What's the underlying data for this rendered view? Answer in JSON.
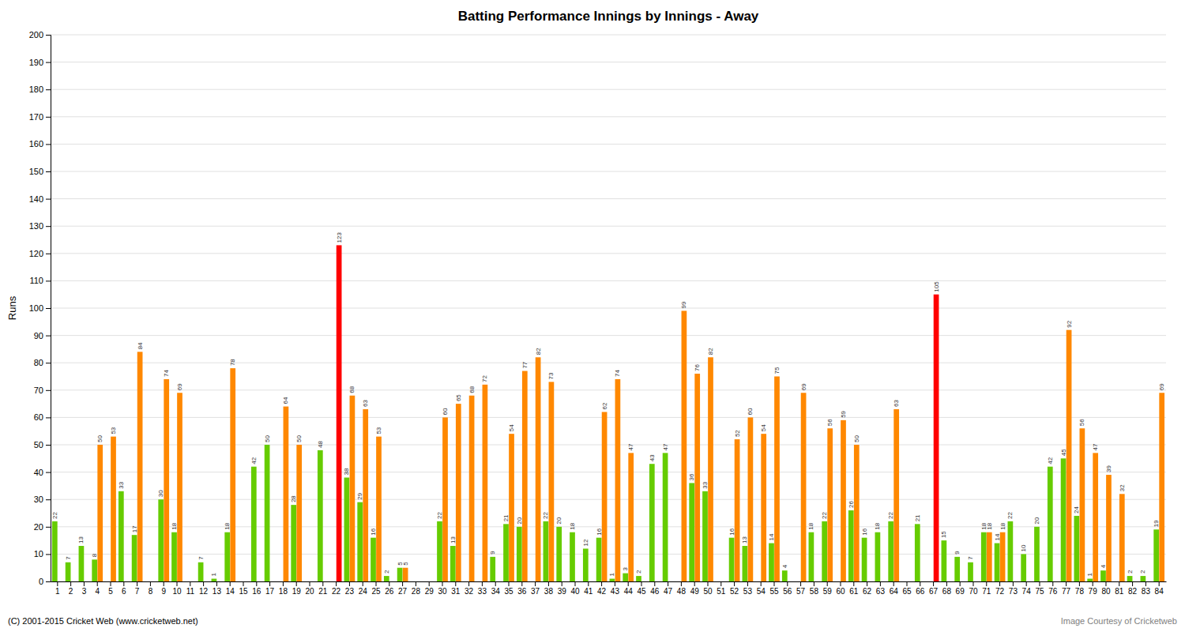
{
  "chart_data": {
    "type": "bar",
    "title": "Batting Performance Innings by Innings - Away",
    "y_label": "Runs",
    "categories": [
      1,
      2,
      3,
      4,
      5,
      6,
      7,
      8,
      9,
      10,
      11,
      12,
      13,
      14,
      15,
      16,
      17,
      18,
      19,
      20,
      21,
      22,
      23,
      24,
      25,
      26,
      27,
      28,
      29,
      30,
      31,
      32,
      33,
      34,
      35,
      36,
      37,
      38,
      39,
      40,
      41,
      42,
      43,
      44,
      45,
      46,
      47,
      48,
      49,
      50,
      51,
      52,
      53,
      54,
      55,
      56,
      57,
      58,
      59,
      60,
      61,
      62,
      63,
      64,
      65,
      66,
      67,
      68,
      69,
      70,
      71,
      72,
      73,
      74,
      75,
      76,
      77,
      78,
      79,
      80,
      81,
      82,
      83,
      84
    ],
    "series": [
      {
        "color": "#66cc00",
        "values": [
          22,
          7,
          13,
          8,
          0,
          33,
          17,
          0,
          30,
          18,
          0,
          7,
          1,
          18,
          0,
          42,
          50,
          0,
          28,
          0,
          48,
          0,
          38,
          29,
          16,
          2,
          5,
          0,
          0,
          22,
          13,
          0,
          0,
          9,
          21,
          20,
          0,
          22,
          20,
          18,
          12,
          16,
          1,
          3,
          2,
          43,
          47,
          0,
          36,
          33,
          0,
          16,
          13,
          0,
          14,
          4,
          0,
          18,
          22,
          0,
          26,
          16,
          18,
          22,
          0,
          21,
          0,
          15,
          9,
          7,
          18,
          14,
          22,
          10,
          20,
          42,
          45,
          24,
          1,
          4,
          0,
          2,
          2,
          19
        ],
        "value_labels": [
          "22",
          "7",
          "13",
          "8",
          null,
          "33",
          "17",
          null,
          "30",
          "18",
          null,
          "7",
          "1",
          "18",
          null,
          "42",
          "50",
          null,
          "28",
          null,
          "48",
          null,
          "38",
          "29",
          "16",
          "2",
          "5",
          null,
          null,
          "22",
          "13",
          null,
          null,
          "9",
          "21",
          "20",
          null,
          "22",
          "20",
          "18",
          "12",
          "16",
          "1",
          "3",
          "2",
          "43",
          "47",
          null,
          "36",
          "33",
          null,
          "16",
          "13",
          null,
          "14",
          "4",
          null,
          "18",
          "22",
          null,
          "26",
          "16",
          "18",
          "22",
          null,
          "21",
          null,
          "15",
          "9",
          "7",
          "18",
          "14",
          "22",
          "10",
          "20",
          "42",
          "45",
          "24",
          "1",
          "4",
          null,
          "2",
          "2",
          "19"
        ]
      },
      {
        "colors": [
          "#ff8800",
          "#ff8800",
          "#ff8800",
          "#ff8800",
          "#ff8800",
          "#ff8800",
          "#ff8800",
          "#ff8800",
          "#ff8800",
          "#ff8800",
          "#ff8800",
          "#ff8800",
          "#ff8800",
          "#ff8800",
          "#ff8800",
          "#ff8800",
          "#ff8800",
          "#ff8800",
          "#ff8800",
          "#ff8800",
          "#ff8800",
          "#ff0000",
          "#ff8800",
          "#ff8800",
          "#ff8800",
          "#ff8800",
          "#ff8800",
          "#ff8800",
          "#ff8800",
          "#ff8800",
          "#ff8800",
          "#ff8800",
          "#ff8800",
          "#ff8800",
          "#ff8800",
          "#ff8800",
          "#ff8800",
          "#ff8800",
          "#ff8800",
          "#ff8800",
          "#ff8800",
          "#ff8800",
          "#ff8800",
          "#ff8800",
          "#ff8800",
          "#ff8800",
          "#ff8800",
          "#ff8800",
          "#ff8800",
          "#ff8800",
          "#ff8800",
          "#ff8800",
          "#ff8800",
          "#ff8800",
          "#ff8800",
          "#ff8800",
          "#ff8800",
          "#ff8800",
          "#ff8800",
          "#ff8800",
          "#ff8800",
          "#ff8800",
          "#ff8800",
          "#ff8800",
          "#ff8800",
          "#ff8800",
          "#ff0000",
          "#ff8800",
          "#ff8800",
          "#ff8800",
          "#ff8800",
          "#ff8800",
          "#ff8800",
          "#ff8800",
          "#ff8800",
          "#ff8800",
          "#ff8800",
          "#ff8800",
          "#ff8800",
          "#ff8800",
          "#ff8800",
          "#ff8800",
          "#ff8800",
          "#ff8800"
        ],
        "values": [
          0,
          0,
          0,
          50,
          53,
          0,
          84,
          0,
          74,
          69,
          0,
          0,
          0,
          78,
          0,
          0,
          0,
          64,
          50,
          0,
          0,
          123,
          68,
          63,
          53,
          0,
          5,
          0,
          0,
          60,
          65,
          68,
          72,
          0,
          54,
          77,
          82,
          73,
          0,
          0,
          0,
          62,
          74,
          47,
          0,
          0,
          0,
          99,
          76,
          82,
          0,
          52,
          60,
          54,
          75,
          0,
          69,
          0,
          56,
          59,
          50,
          0,
          0,
          63,
          0,
          0,
          105,
          0,
          0,
          0,
          18,
          18,
          0,
          0,
          0,
          0,
          92,
          56,
          47,
          39,
          32,
          0,
          0,
          69
        ],
        "value_labels": [
          null,
          null,
          null,
          "50",
          "53",
          null,
          "84",
          null,
          "74",
          "69",
          null,
          null,
          null,
          "78",
          null,
          null,
          null,
          "64",
          "50",
          null,
          null,
          "123",
          "68",
          "63",
          "53",
          null,
          "5",
          null,
          null,
          "60",
          "65",
          "68",
          "72",
          null,
          "54",
          "77",
          "82",
          "73",
          null,
          null,
          null,
          "62",
          "74",
          "47",
          null,
          null,
          null,
          "99",
          "76",
          "82",
          null,
          "52",
          "60",
          "54",
          "75",
          null,
          "69",
          null,
          "56",
          "59",
          "50",
          null,
          null,
          "63",
          null,
          null,
          "105",
          null,
          null,
          null,
          "18",
          "18",
          null,
          null,
          null,
          null,
          "92",
          "56",
          "47",
          "39",
          "32",
          null,
          null,
          "69"
        ]
      }
    ],
    "ylim": [
      0,
      200
    ],
    "yticks": [
      0,
      10,
      20,
      30,
      40,
      50,
      60,
      70,
      80,
      90,
      100,
      110,
      120,
      130,
      140,
      150,
      160,
      170,
      180,
      190,
      200
    ],
    "grid": true,
    "data_labels": true,
    "annotations": [
      "(C) 2001-2015 Cricket Web (www.cricketweb.net)",
      "Image Courtesy of Cricketweb"
    ]
  }
}
